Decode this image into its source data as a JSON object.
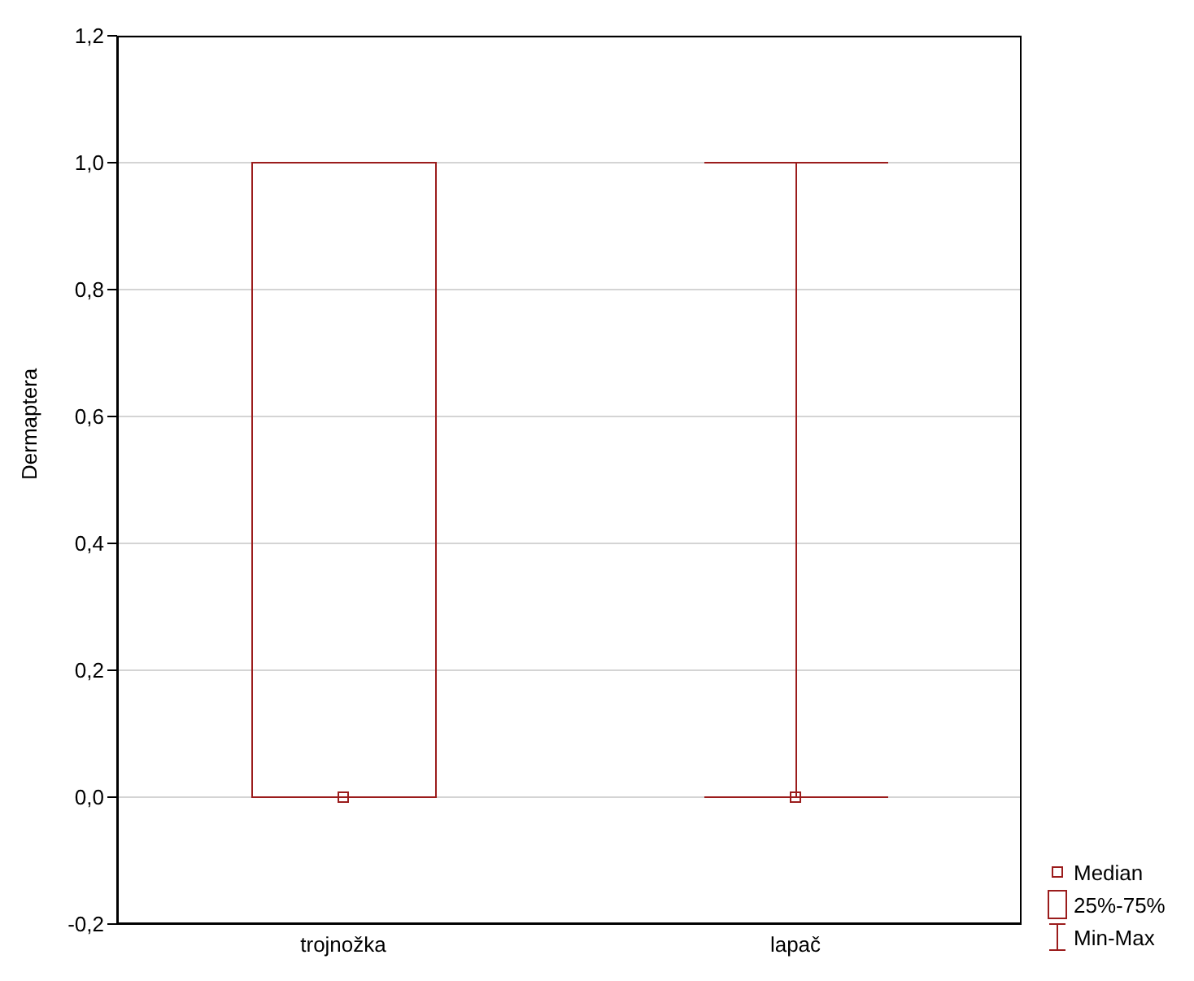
{
  "chart_data": {
    "type": "box",
    "ylabel": "Dermaptera",
    "categories": [
      "trojnožka",
      "lapač"
    ],
    "series": [
      {
        "name": "25%-75%",
        "color": "#9b1c1c",
        "boxes": [
          {
            "low": 0,
            "q1": 0,
            "q3": 1,
            "high": 1
          },
          {
            "low": 0,
            "q1": 0,
            "q3": 0,
            "high": 1
          }
        ]
      },
      {
        "name": "Median",
        "type": "scatter",
        "color": "#9b1c1c",
        "x": [
          "trojnožka",
          "lapač"
        ],
        "values": [
          0,
          0
        ]
      }
    ],
    "ylim": [
      -0.2,
      1.2
    ],
    "yticks": [
      {
        "value": -0.2,
        "label": "-0,2"
      },
      {
        "value": 0,
        "label": "0,0"
      },
      {
        "value": 0.2,
        "label": "0,2"
      },
      {
        "value": 0.4,
        "label": "0,4"
      },
      {
        "value": 0.6,
        "label": "0,6"
      },
      {
        "value": 0.8,
        "label": "0,8"
      },
      {
        "value": 1,
        "label": "1,0"
      },
      {
        "value": 1.2,
        "label": "1,2"
      }
    ],
    "grid": "y",
    "legend": "bottom right",
    "marker": "square",
    "annotations": [
      "Min-Max"
    ]
  }
}
